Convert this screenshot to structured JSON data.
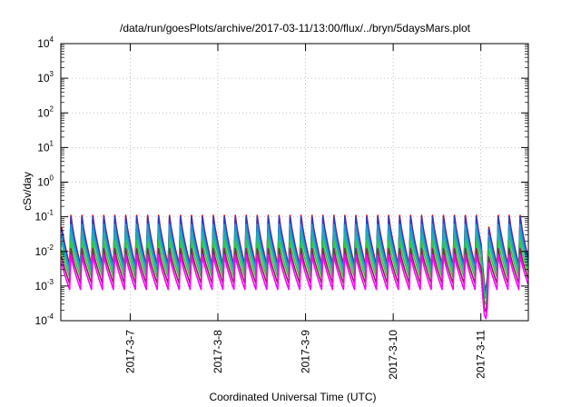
{
  "chart_data": {
    "type": "line",
    "title": "/data/run/goesPlots/archive/2017-03-11/13:00/flux/../bryn/5daysMars.plot",
    "xlabel": "Coordinated Universal Time (UTC)",
    "ylabel": "cSv/day",
    "xlim": [
      "2017-03-06 05:00",
      "2017-03-11 13:00"
    ],
    "ylim": [
      0.0001,
      10000
    ],
    "yscale": "log",
    "grid": true,
    "x_tick_labels": [
      "2017-3-7",
      "2017-3-8",
      "2017-3-9",
      "2017-3-10",
      "2017-3-11"
    ],
    "y_tick_labels": [
      {
        "base": "10",
        "exp": "4"
      },
      {
        "base": "10",
        "exp": "3"
      },
      {
        "base": "10",
        "exp": "2"
      },
      {
        "base": "10",
        "exp": "1"
      },
      {
        "base": "10",
        "exp": "0"
      },
      {
        "base": "10",
        "exp": "-1"
      },
      {
        "base": "10",
        "exp": "-2"
      },
      {
        "base": "10",
        "exp": "-3"
      },
      {
        "base": "10",
        "exp": "-4"
      }
    ],
    "cycle_hours": 3,
    "dropout": {
      "start": "2017-03-11 00:30",
      "end": "2017-03-11 02:00"
    },
    "series": [
      {
        "color": "#ff0000",
        "peak": 0.11,
        "trough": 0.004
      },
      {
        "color": "#2a3cc8",
        "peak": 0.1,
        "trough": 0.0035
      },
      {
        "color": "#1a9bd6",
        "peak": 0.06,
        "trough": 0.003
      },
      {
        "color": "#20b2aa",
        "peak": 0.035,
        "trough": 0.0025
      },
      {
        "color": "#32c832",
        "peak": 0.02,
        "trough": 0.0018
      },
      {
        "color": "#8b2252",
        "peak": 0.012,
        "trough": 0.0012
      },
      {
        "color": "#ff00ff",
        "peak": 0.008,
        "trough": 0.0008
      }
    ]
  }
}
